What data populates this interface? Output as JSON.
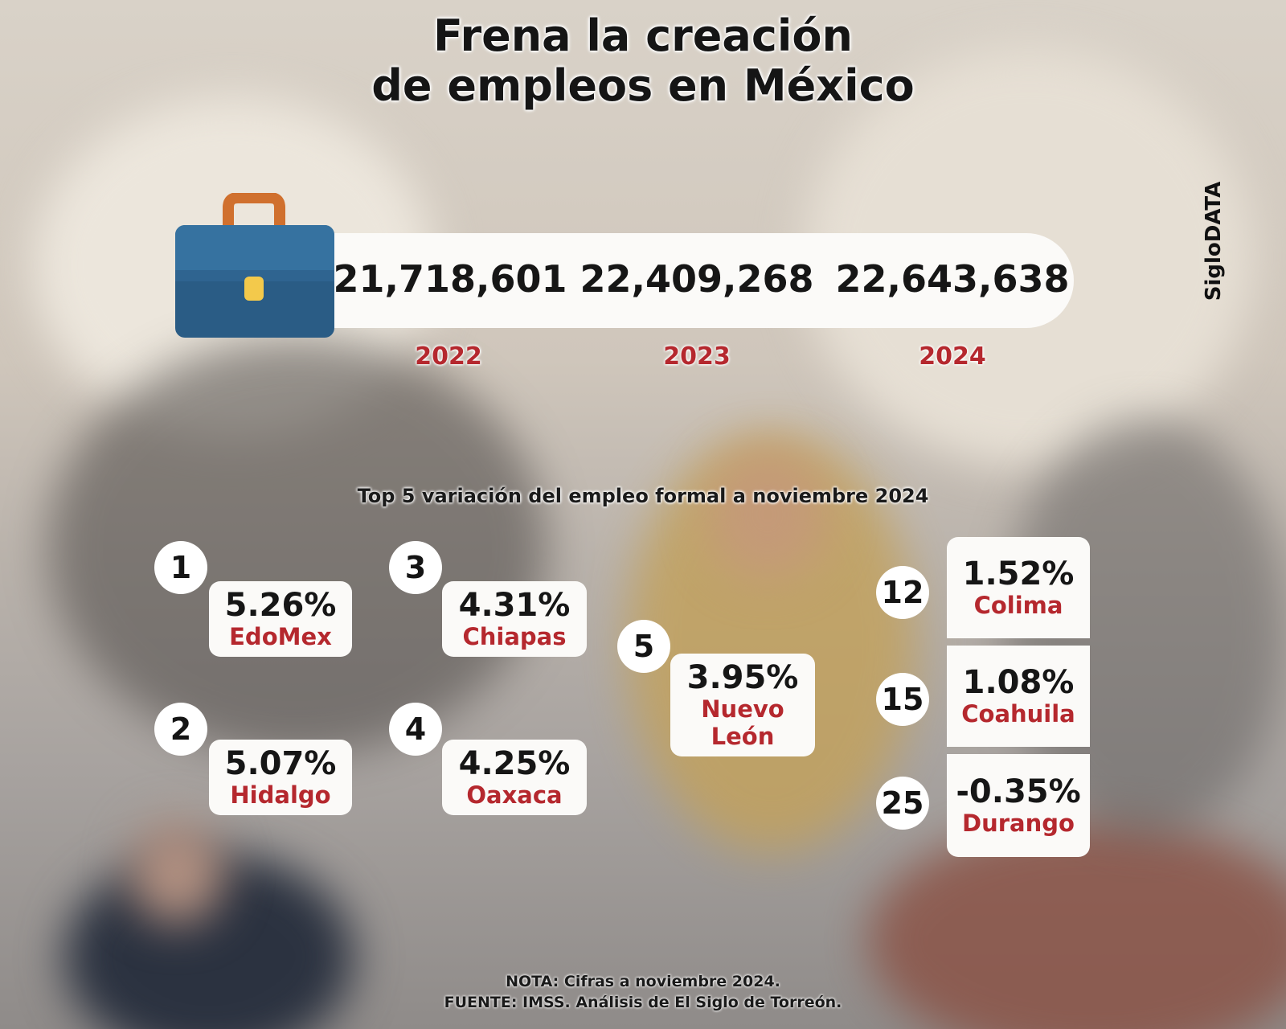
{
  "title_line1": "Frena la creación",
  "title_line2": "de empleos en México",
  "brand": "SigloDATA",
  "icons": {
    "briefcase": "briefcase-icon"
  },
  "colors": {
    "accent_red": "#b5282e",
    "briefcase_blue": "#2f6490",
    "briefcase_handle": "#d0702e",
    "clasp": "#f3c94b"
  },
  "chart_data": [
    {
      "type": "table",
      "categories": [
        "2022",
        "2023",
        "2024"
      ],
      "values_text": [
        "21,718,601",
        "22,409,268",
        "22,643,638"
      ],
      "values": [
        21718601,
        22409268,
        22643638
      ]
    },
    {
      "type": "table",
      "title": "Top 5 variación del empleo formal a noviembre 2024",
      "rows": [
        {
          "rank": "1",
          "value": "5.26%",
          "state": "EdoMex"
        },
        {
          "rank": "2",
          "value": "5.07%",
          "state": "Hidalgo"
        },
        {
          "rank": "3",
          "value": "4.31%",
          "state": "Chiapas"
        },
        {
          "rank": "4",
          "value": "4.25%",
          "state": "Oaxaca"
        },
        {
          "rank": "5",
          "value": "3.95%",
          "state_line1": "Nuevo",
          "state_line2": "León"
        },
        {
          "rank": "12",
          "value": "1.52%",
          "state": "Colima"
        },
        {
          "rank": "15",
          "value": "1.08%",
          "state": "Coahuila"
        },
        {
          "rank": "25",
          "value": "-0.35%",
          "state": "Durango"
        }
      ]
    }
  ],
  "footer": {
    "nota": "NOTA: Cifras a noviembre 2024.",
    "fuente": "FUENTE: IMSS. Análisis de El Siglo de Torreón."
  }
}
